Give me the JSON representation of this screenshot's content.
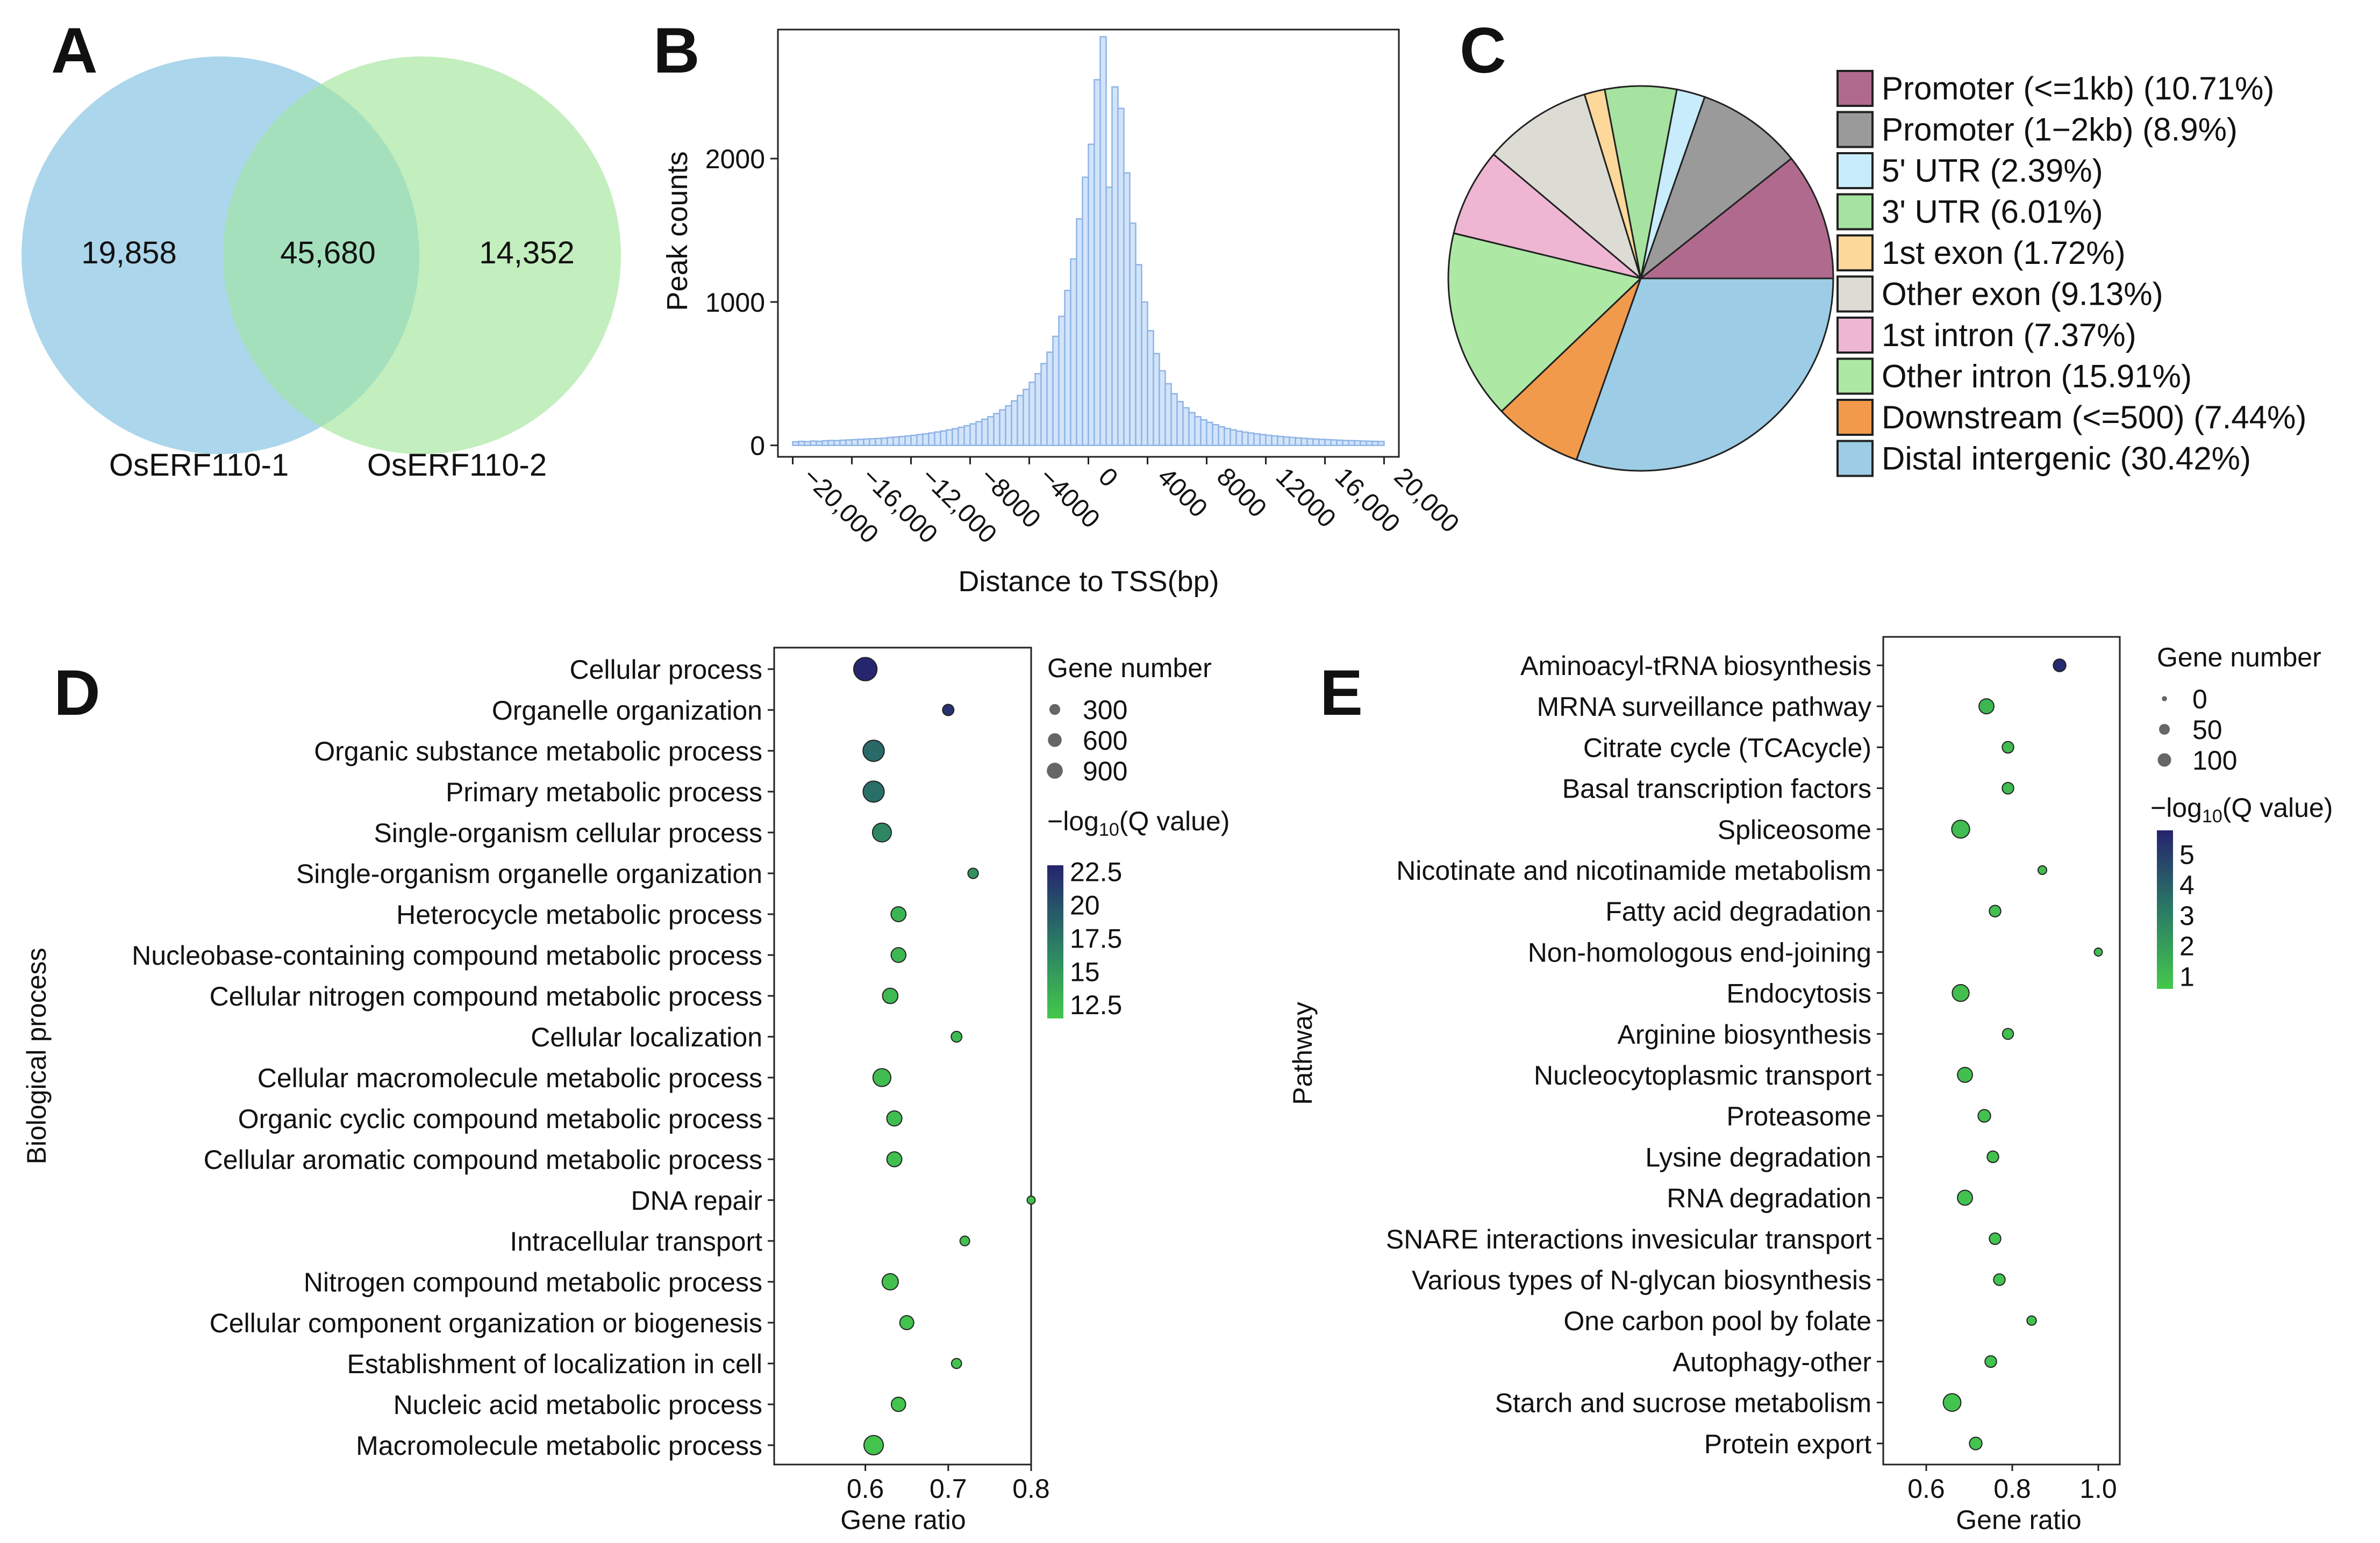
{
  "panels": {
    "A": {
      "letter": "A",
      "chart_data": {
        "type": "venn",
        "sets": [
          {
            "name": "OsERF110-1",
            "only": "19,858",
            "color": "#a8d4ea"
          },
          {
            "name": "OsERF110-2",
            "only": "14,352",
            "color": "#b9ebb3"
          }
        ],
        "overlap": "45,680",
        "overlap_color": "#a5e0bc"
      }
    },
    "B": {
      "letter": "B",
      "chart_data": {
        "type": "bar",
        "xlabel": "Distance to TSS(bp)",
        "ylabel": "Peak counts",
        "xlim": [
          -21000,
          21000
        ],
        "ylim": [
          -80,
          2900
        ],
        "yticks": [
          0,
          1000,
          2000
        ],
        "ytick_labels": [
          "0",
          "1000",
          "2000"
        ],
        "xticks": [
          -20000,
          -16000,
          -12000,
          -8000,
          -4000,
          0,
          4000,
          8000,
          12000,
          16000,
          20000
        ],
        "xtick_labels": [
          "−20,000",
          "−16,000",
          "−12,000",
          "−8000",
          "−4000",
          "0",
          "4000",
          "8000",
          "12000",
          "16,000",
          "20,000"
        ],
        "bin_width": 400,
        "bar_color": "#d2e4fa",
        "bar_edge": "#8fb4e6",
        "bins": [
          {
            "x": -20000,
            "y": 25
          },
          {
            "x": -19600,
            "y": 28
          },
          {
            "x": -19200,
            "y": 26
          },
          {
            "x": -18800,
            "y": 30
          },
          {
            "x": -18400,
            "y": 28
          },
          {
            "x": -18000,
            "y": 32
          },
          {
            "x": -17600,
            "y": 34
          },
          {
            "x": -17200,
            "y": 33
          },
          {
            "x": -16800,
            "y": 36
          },
          {
            "x": -16400,
            "y": 38
          },
          {
            "x": -16000,
            "y": 40
          },
          {
            "x": -15600,
            "y": 42
          },
          {
            "x": -15200,
            "y": 44
          },
          {
            "x": -14800,
            "y": 46
          },
          {
            "x": -14400,
            "y": 48
          },
          {
            "x": -14000,
            "y": 50
          },
          {
            "x": -13600,
            "y": 55
          },
          {
            "x": -13200,
            "y": 58
          },
          {
            "x": -12800,
            "y": 62
          },
          {
            "x": -12400,
            "y": 66
          },
          {
            "x": -12000,
            "y": 70
          },
          {
            "x": -11600,
            "y": 75
          },
          {
            "x": -11200,
            "y": 80
          },
          {
            "x": -10800,
            "y": 86
          },
          {
            "x": -10400,
            "y": 93
          },
          {
            "x": -10000,
            "y": 100
          },
          {
            "x": -9600,
            "y": 108
          },
          {
            "x": -9200,
            "y": 116
          },
          {
            "x": -8800,
            "y": 126
          },
          {
            "x": -8400,
            "y": 137
          },
          {
            "x": -8000,
            "y": 150
          },
          {
            "x": -7600,
            "y": 165
          },
          {
            "x": -7200,
            "y": 182
          },
          {
            "x": -6800,
            "y": 200
          },
          {
            "x": -6400,
            "y": 222
          },
          {
            "x": -6000,
            "y": 248
          },
          {
            "x": -5600,
            "y": 276
          },
          {
            "x": -5200,
            "y": 310
          },
          {
            "x": -4800,
            "y": 348
          },
          {
            "x": -4400,
            "y": 390
          },
          {
            "x": -4000,
            "y": 440
          },
          {
            "x": -3600,
            "y": 500
          },
          {
            "x": -3200,
            "y": 570
          },
          {
            "x": -2800,
            "y": 650
          },
          {
            "x": -2400,
            "y": 760
          },
          {
            "x": -2000,
            "y": 900
          },
          {
            "x": -1600,
            "y": 1080
          },
          {
            "x": -1200,
            "y": 1300
          },
          {
            "x": -800,
            "y": 1580
          },
          {
            "x": -400,
            "y": 1870
          },
          {
            "x": 0,
            "y": 2100
          },
          {
            "x": 400,
            "y": 2550
          },
          {
            "x": 800,
            "y": 2850
          },
          {
            "x": 1200,
            "y": 1800
          },
          {
            "x": 1600,
            "y": 2500
          },
          {
            "x": 2000,
            "y": 2350
          },
          {
            "x": 2400,
            "y": 1900
          },
          {
            "x": 2800,
            "y": 1550
          },
          {
            "x": 3200,
            "y": 1260
          },
          {
            "x": 3600,
            "y": 1000
          },
          {
            "x": 4000,
            "y": 800
          },
          {
            "x": 4400,
            "y": 640
          },
          {
            "x": 4800,
            "y": 520
          },
          {
            "x": 5200,
            "y": 430
          },
          {
            "x": 5600,
            "y": 360
          },
          {
            "x": 6000,
            "y": 305
          },
          {
            "x": 6400,
            "y": 262
          },
          {
            "x": 6800,
            "y": 228
          },
          {
            "x": 7200,
            "y": 200
          },
          {
            "x": 7600,
            "y": 178
          },
          {
            "x": 8000,
            "y": 160
          },
          {
            "x": 8400,
            "y": 144
          },
          {
            "x": 8800,
            "y": 130
          },
          {
            "x": 9200,
            "y": 118
          },
          {
            "x": 9600,
            "y": 108
          },
          {
            "x": 10000,
            "y": 99
          },
          {
            "x": 10400,
            "y": 92
          },
          {
            "x": 10800,
            "y": 86
          },
          {
            "x": 11200,
            "y": 80
          },
          {
            "x": 11600,
            "y": 75
          },
          {
            "x": 12000,
            "y": 70
          },
          {
            "x": 12400,
            "y": 66
          },
          {
            "x": 12800,
            "y": 62
          },
          {
            "x": 13200,
            "y": 58
          },
          {
            "x": 13600,
            "y": 55
          },
          {
            "x": 14000,
            "y": 52
          },
          {
            "x": 14400,
            "y": 49
          },
          {
            "x": 14800,
            "y": 46
          },
          {
            "x": 15200,
            "y": 44
          },
          {
            "x": 15600,
            "y": 42
          },
          {
            "x": 16000,
            "y": 40
          },
          {
            "x": 16400,
            "y": 38
          },
          {
            "x": 16800,
            "y": 36
          },
          {
            "x": 17200,
            "y": 34
          },
          {
            "x": 17600,
            "y": 33
          },
          {
            "x": 18000,
            "y": 32
          },
          {
            "x": 18400,
            "y": 30
          },
          {
            "x": 18800,
            "y": 29
          },
          {
            "x": 19200,
            "y": 28
          },
          {
            "x": 19600,
            "y": 27
          }
        ]
      }
    },
    "C": {
      "letter": "C",
      "chart_data": {
        "type": "pie",
        "legend_position": "right",
        "slices": [
          {
            "label": "Promoter (<=1kb) (10.71%)",
            "value": 10.71,
            "color": "#b06a8e"
          },
          {
            "label": "Promoter (1−2kb) (8.9%)",
            "value": 8.9,
            "color": "#9a9a9a"
          },
          {
            "label": "5' UTR (2.39%)",
            "value": 2.39,
            "color": "#c8ecfb"
          },
          {
            "label": "3' UTR (6.01%)",
            "value": 6.01,
            "color": "#a6e3a0"
          },
          {
            "label": "1st exon (1.72%)",
            "value": 1.72,
            "color": "#fcd89a"
          },
          {
            "label": "Other exon (9.13%)",
            "value": 9.13,
            "color": "#dddcd4"
          },
          {
            "label": "1st intron (7.37%)",
            "value": 7.37,
            "color": "#efb6d4"
          },
          {
            "label": "Other intron (15.91%)",
            "value": 15.91,
            "color": "#ade9a5"
          },
          {
            "label": "Downstream (<=500) (7.44%)",
            "value": 7.44,
            "color": "#f29a4b"
          },
          {
            "label": "Distal intergenic (30.42%)",
            "value": 30.42,
            "color": "#9dcde6"
          }
        ]
      }
    },
    "D": {
      "letter": "D",
      "chart_data": {
        "type": "scatter",
        "xlabel": "Gene ratio",
        "ylabel": "Biological process",
        "xlim": [
          0.49,
          0.8
        ],
        "xticks": [
          0.6,
          0.7,
          0.8
        ],
        "xtick_labels": [
          "0.6",
          "0.7",
          "0.8"
        ],
        "size_legend": {
          "title": "Gene number",
          "items": [
            {
              "label": "300",
              "value": 300
            },
            {
              "label": "600",
              "value": 600
            },
            {
              "label": "900",
              "value": 900
            }
          ]
        },
        "color_legend": {
          "title_main": "−log",
          "title_sub": "10",
          "title_rest": "(Q value)",
          "min": 11.5,
          "max": 23,
          "ticks": [
            22.5,
            20,
            17.5,
            15,
            12.5
          ],
          "tick_labels": [
            "22.5",
            "20",
            "17.5",
            "15",
            "12.5"
          ]
        },
        "size_range": [
          50,
          1200
        ],
        "points": [
          {
            "term": "Cellular process",
            "ratio": 0.6,
            "genes": 1150,
            "q": 22.8
          },
          {
            "term": "Organelle organization",
            "ratio": 0.7,
            "genes": 140,
            "q": 22.0
          },
          {
            "term": "Organic substance metabolic process",
            "ratio": 0.61,
            "genes": 900,
            "q": 18.3
          },
          {
            "term": "Primary metabolic process",
            "ratio": 0.61,
            "genes": 880,
            "q": 18.0
          },
          {
            "term": "Single-organism cellular process",
            "ratio": 0.62,
            "genes": 650,
            "q": 16.3
          },
          {
            "term": "Single-organism organelle organization",
            "ratio": 0.73,
            "genes": 110,
            "q": 15.5
          },
          {
            "term": "Heterocycle metabolic process",
            "ratio": 0.64,
            "genes": 330,
            "q": 13.0
          },
          {
            "term": "Nucleobase-containing compound metabolic process",
            "ratio": 0.64,
            "genes": 320,
            "q": 12.8
          },
          {
            "term": "Cellular nitrogen compound metabolic process",
            "ratio": 0.63,
            "genes": 360,
            "q": 12.6
          },
          {
            "term": "Cellular localization",
            "ratio": 0.71,
            "genes": 120,
            "q": 12.5
          },
          {
            "term": "Cellular macromolecule metabolic process",
            "ratio": 0.62,
            "genes": 560,
            "q": 12.4
          },
          {
            "term": "Organic cyclic compound metabolic process",
            "ratio": 0.635,
            "genes": 340,
            "q": 12.3
          },
          {
            "term": "Cellular aromatic compound metabolic process",
            "ratio": 0.635,
            "genes": 330,
            "q": 12.2
          },
          {
            "term": "DNA repair",
            "ratio": 0.8,
            "genes": 60,
            "q": 12.1
          },
          {
            "term": "Intracellular transport",
            "ratio": 0.72,
            "genes": 90,
            "q": 12.0
          },
          {
            "term": "Nitrogen compound metabolic process",
            "ratio": 0.63,
            "genes": 420,
            "q": 12.0
          },
          {
            "term": "Cellular component organization or biogenesis",
            "ratio": 0.65,
            "genes": 270,
            "q": 11.9
          },
          {
            "term": "Establishment of localization in cell",
            "ratio": 0.71,
            "genes": 100,
            "q": 11.9
          },
          {
            "term": "Nucleic acid metabolic process",
            "ratio": 0.64,
            "genes": 290,
            "q": 11.8
          },
          {
            "term": "Macromolecule metabolic process",
            "ratio": 0.61,
            "genes": 700,
            "q": 11.8
          }
        ]
      }
    },
    "E": {
      "letter": "E",
      "chart_data": {
        "type": "scatter",
        "xlabel": "Gene ratio",
        "ylabel": "Pathway",
        "xlim": [
          0.5,
          1.05
        ],
        "xticks": [
          0.6,
          0.8,
          1.0
        ],
        "xtick_labels": [
          "0.6",
          "0.8",
          "1.0"
        ],
        "size_legend": {
          "title": "Gene number",
          "items": [
            {
              "label": "0",
              "value": 0
            },
            {
              "label": "50",
              "value": 50
            },
            {
              "label": "100",
              "value": 100
            }
          ]
        },
        "color_legend": {
          "title_main": "−log",
          "title_sub": "10",
          "title_rest": "(Q value)",
          "min": 0.6,
          "max": 5.8,
          "ticks": [
            5,
            4,
            3,
            2,
            1
          ],
          "tick_labels": [
            "5",
            "4",
            "3",
            "2",
            "1"
          ]
        },
        "size_range": [
          8,
          150
        ],
        "points": [
          {
            "term": "Aminoacyl-tRNA biosynthesis",
            "ratio": 0.91,
            "genes": 40,
            "q": 5.6
          },
          {
            "term": "MRNA surveillance pathway",
            "ratio": 0.74,
            "genes": 70,
            "q": 1.2
          },
          {
            "term": "Citrate cycle (TCAcycle)",
            "ratio": 0.79,
            "genes": 30,
            "q": 1.0
          },
          {
            "term": "Basal transcription factors",
            "ratio": 0.79,
            "genes": 30,
            "q": 1.0
          },
          {
            "term": "Spliceosome",
            "ratio": 0.68,
            "genes": 120,
            "q": 1.0
          },
          {
            "term": "Nicotinate and nicotinamide metabolism",
            "ratio": 0.87,
            "genes": 12,
            "q": 1.0
          },
          {
            "term": "Fatty acid degradation",
            "ratio": 0.76,
            "genes": 30,
            "q": 0.9
          },
          {
            "term": "Non-homologous end-joining",
            "ratio": 1.0,
            "genes": 10,
            "q": 0.9
          },
          {
            "term": "Endocytosis",
            "ratio": 0.68,
            "genes": 100,
            "q": 0.9
          },
          {
            "term": "Arginine biosynthesis",
            "ratio": 0.79,
            "genes": 25,
            "q": 0.9
          },
          {
            "term": "Nucleocytoplasmic transport",
            "ratio": 0.69,
            "genes": 70,
            "q": 0.9
          },
          {
            "term": "Proteasome",
            "ratio": 0.735,
            "genes": 40,
            "q": 0.85
          },
          {
            "term": "Lysine degradation",
            "ratio": 0.755,
            "genes": 30,
            "q": 0.85
          },
          {
            "term": "RNA degradation",
            "ratio": 0.69,
            "genes": 70,
            "q": 0.85
          },
          {
            "term": "SNARE interactions invesicular transport",
            "ratio": 0.76,
            "genes": 30,
            "q": 0.8
          },
          {
            "term": "Various types of N-glycan biosynthesis",
            "ratio": 0.77,
            "genes": 30,
            "q": 0.8
          },
          {
            "term": "One carbon pool by folate",
            "ratio": 0.845,
            "genes": 15,
            "q": 0.8
          },
          {
            "term": "Autophagy-other",
            "ratio": 0.75,
            "genes": 30,
            "q": 0.8
          },
          {
            "term": "Starch and sucrose metabolism",
            "ratio": 0.66,
            "genes": 115,
            "q": 0.75
          },
          {
            "term": "Protein export",
            "ratio": 0.715,
            "genes": 40,
            "q": 0.75
          }
        ]
      }
    }
  }
}
